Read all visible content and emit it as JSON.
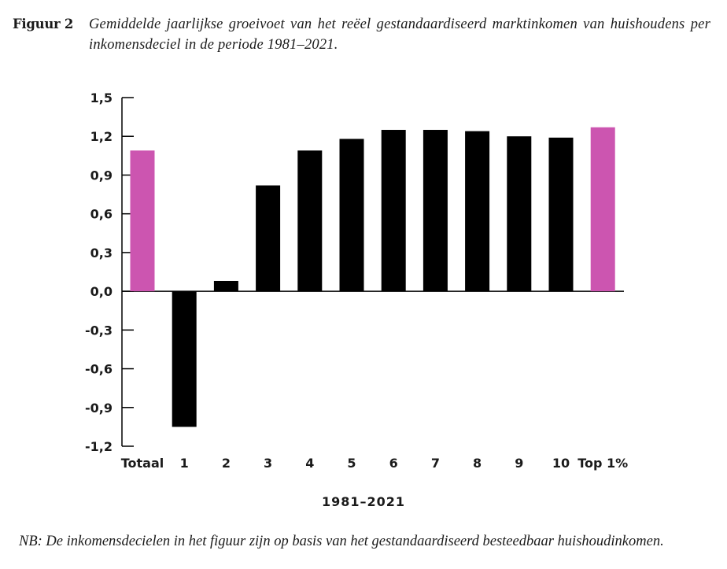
{
  "caption": {
    "label": "Figuur 2",
    "text": "Gemiddelde jaarlijkse groeivoet van het reëel gestandaardiseerd marktinkomen van huishoudens per inkomensdeciel in de periode 1981–2021."
  },
  "note": "NB: De inkomensdecielen in het figuur zijn op basis van het gestandaardiseerd besteedbaar huishoudinkomen.",
  "colors": {
    "highlight": "#cc55b0",
    "bar": "#000000"
  },
  "chart_data": {
    "type": "bar",
    "title": "",
    "xlabel": "1981–2021",
    "ylabel": "",
    "ylim": [
      -1.2,
      1.5
    ],
    "yticks": [
      "1,5",
      "1,2",
      "0,9",
      "0,6",
      "0,3",
      "0,0",
      "-0,3",
      "-0,6",
      "-0,9",
      "-1,2"
    ],
    "categories": [
      "Totaal",
      "1",
      "2",
      "3",
      "4",
      "5",
      "6",
      "7",
      "8",
      "9",
      "10",
      "Top 1%"
    ],
    "values": [
      1.09,
      -1.05,
      0.08,
      0.82,
      1.09,
      1.18,
      1.25,
      1.25,
      1.24,
      1.2,
      1.19,
      1.27
    ],
    "highlight": [
      "Totaal",
      "Top 1%"
    ],
    "grid": false,
    "legend": "none"
  }
}
